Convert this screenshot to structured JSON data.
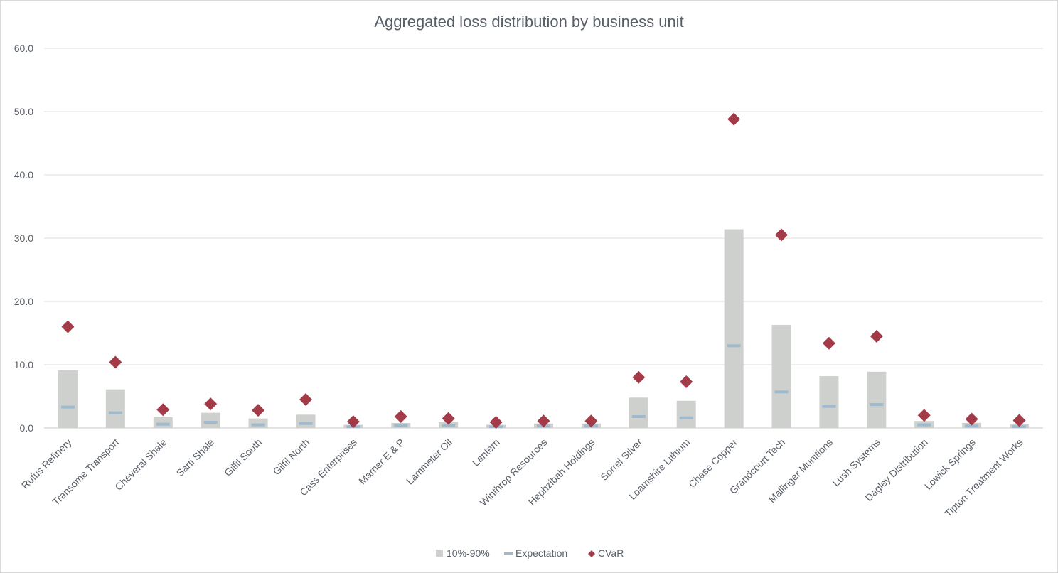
{
  "chart_data": {
    "type": "bar",
    "title": "Aggregated loss distribution by business unit",
    "xlabel": "",
    "ylabel": "",
    "ylim": [
      0,
      60
    ],
    "yticks": [
      0,
      10,
      20,
      30,
      40,
      50,
      60
    ],
    "ytick_labels": [
      "0.0",
      "10.0",
      "20.0",
      "30.0",
      "40.0",
      "50.0",
      "60.0"
    ],
    "grid": true,
    "legend_position": "bottom",
    "categories": [
      "Rufus Refinery",
      "Transome Transport",
      "Cheveral Shale",
      "Sarti Shale",
      "Gilfil South",
      "Gilfil North",
      "Cass Enterprises",
      "Marner E & P",
      "Lammeter Oil",
      "Lantern",
      "Winthrop Resources",
      "Hephzibah Holdings",
      "Sorrel Silver",
      "Loamshire Lithium",
      "Chase Copper",
      "Grandcourt Tech",
      "Mallinger Munitions",
      "Lush Systems",
      "Dagley Distribution",
      "Lowick Springs",
      "Tipton Treatment Works"
    ],
    "series": [
      {
        "name": "10%-90%",
        "kind": "bar",
        "color": "#cdd0cc",
        "values": [
          9.1,
          6.1,
          1.7,
          2.4,
          1.5,
          2.1,
          0.5,
          0.8,
          0.9,
          0.5,
          0.7,
          0.7,
          4.8,
          4.3,
          31.4,
          16.3,
          8.2,
          8.9,
          1.1,
          0.8,
          0.6
        ]
      },
      {
        "name": "Expectation",
        "kind": "dash",
        "color": "#9fb9cf",
        "values": [
          3.3,
          2.4,
          0.6,
          0.9,
          0.5,
          0.7,
          0.2,
          0.4,
          0.4,
          0.2,
          0.3,
          0.3,
          1.8,
          1.6,
          13.0,
          5.7,
          3.4,
          3.7,
          0.5,
          0.3,
          0.2
        ]
      },
      {
        "name": "CVaR",
        "kind": "diamond",
        "color": "#a23a48",
        "values": [
          16.0,
          10.4,
          2.9,
          3.8,
          2.8,
          4.5,
          1.0,
          1.8,
          1.5,
          0.9,
          1.1,
          1.1,
          8.0,
          7.3,
          48.8,
          30.5,
          13.4,
          14.5,
          2.0,
          1.4,
          1.2
        ]
      }
    ]
  }
}
